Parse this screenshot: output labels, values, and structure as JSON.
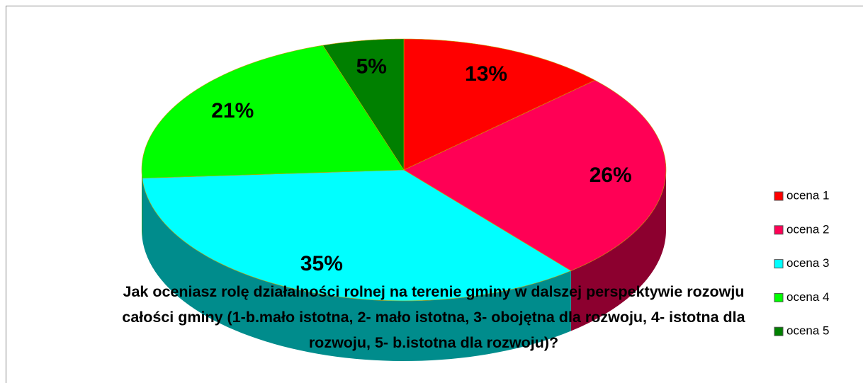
{
  "chart_data": {
    "type": "pie3d",
    "title": "Jak oceniasz rolę działalności rolnej na terenie gminy w dalszej perspektywie rozowju całości gminy (1-b.mało istotna, 2- mało istotna, 3- obojętna dla rozwoju, 4- istotna dla rozwoju, 5- b.istotna dla rozwoju)?",
    "categories": [
      "ocena 1",
      "ocena 2",
      "ocena 3",
      "ocena 4",
      "ocena 5"
    ],
    "values": [
      13,
      26,
      35,
      21,
      5
    ],
    "value_labels": [
      "13%",
      "26%",
      "35%",
      "21%",
      "5%"
    ],
    "colors": [
      "#ff0000",
      "#ff0055",
      "#00ffff",
      "#00ff00",
      "#008000"
    ],
    "legend": "right"
  }
}
